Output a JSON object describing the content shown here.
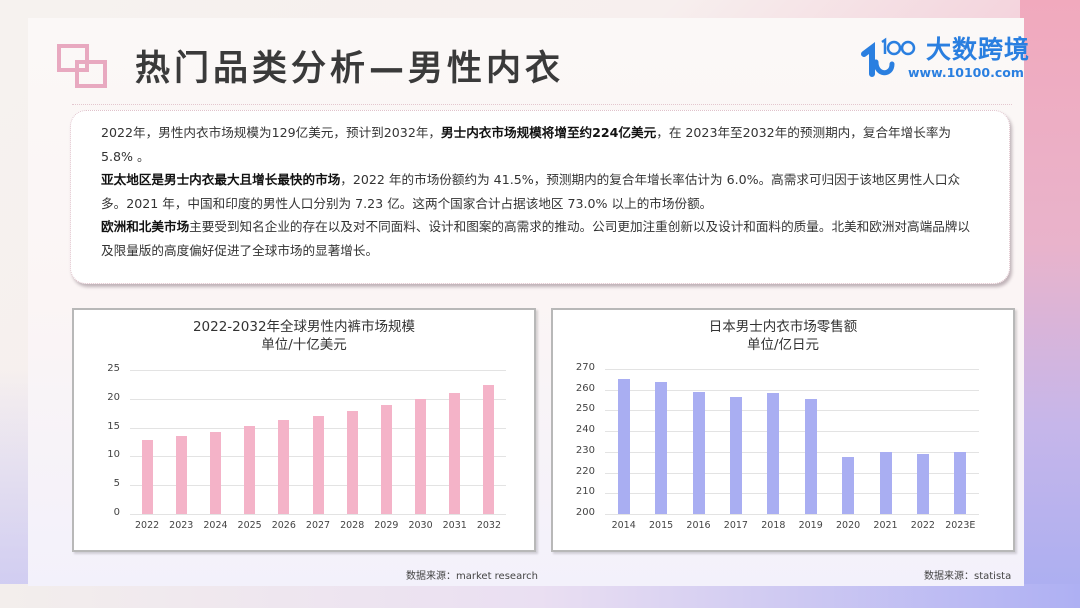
{
  "header": {
    "title": "热门品类分析—男性内衣",
    "brand_name": "大数跨境",
    "brand_url": "www.10100.com",
    "brand_mark": "1000"
  },
  "summary": {
    "paragraphs": [
      {
        "segments": [
          {
            "text": "2022年，男性内衣市场规模为129亿美元，预计到2032年，",
            "bold": false
          },
          {
            "text": "男士内衣市场规模将增至约224亿美元",
            "bold": true
          },
          {
            "text": "，在 2023年至2032年的预测期内，复合年增长率为 5.8% 。",
            "bold": false
          }
        ]
      },
      {
        "segments": [
          {
            "text": "亚太地区是男士内衣最大且增长最快的市场",
            "bold": true
          },
          {
            "text": "，2022 年的市场份额约为 41.5%，预测期内的复合年增长率估计为 6.0%。高需求可归因于该地区男性人口众多。2021 年，中国和印度的男性人口分别为 7.23 亿。这两个国家合计占据该地区 73.0% 以上的市场份额。",
            "bold": false
          }
        ]
      },
      {
        "segments": [
          {
            "text": "欧洲和北美市场",
            "bold": true
          },
          {
            "text": "主要受到知名企业的存在以及对不同面料、设计和图案的高需求的推动。公司更加注重创新以及设计和面料的质量。北美和欧洲对高端品牌以及限量版的高度偏好促进了全球市场的显著增长。",
            "bold": false
          }
        ]
      }
    ]
  },
  "colors": {
    "accent_pink": "#e8a9c0",
    "bar_pink": "#f4b3c8",
    "bar_blue": "#a9aef2",
    "brand_blue": "#2a7fe0"
  },
  "chart_data": [
    {
      "type": "bar",
      "title": "2022-2032年全球男性内裤市场规模",
      "subtitle": "单位/十亿美元",
      "xlabel": "",
      "ylabel": "",
      "categories": [
        "2022",
        "2023",
        "2024",
        "2025",
        "2026",
        "2027",
        "2028",
        "2029",
        "2030",
        "2031",
        "2032"
      ],
      "values": [
        12.9,
        13.6,
        14.3,
        15.3,
        16.4,
        17.1,
        17.8,
        18.9,
        19.9,
        21.0,
        22.4
      ],
      "ylim": [
        0,
        25
      ],
      "yticks": [
        0,
        5,
        10,
        15,
        20,
        25
      ],
      "grid": true,
      "legend": null,
      "color": "#f4b3c8",
      "source": "数据来源：market research"
    },
    {
      "type": "bar",
      "title": "日本男士内衣市场零售额",
      "subtitle": "单位/亿日元",
      "xlabel": "",
      "ylabel": "",
      "categories": [
        "2014",
        "2015",
        "2016",
        "2017",
        "2018",
        "2019",
        "2020",
        "2021",
        "2022",
        "2023E"
      ],
      "values": [
        265,
        263.5,
        259,
        256.5,
        258.5,
        255.5,
        227.5,
        230,
        229,
        230
      ],
      "ylim": [
        200,
        270
      ],
      "yticks": [
        200,
        210,
        220,
        230,
        240,
        250,
        260,
        270
      ],
      "grid": true,
      "legend": null,
      "color": "#a9aef2",
      "source": "数据来源：statista"
    }
  ]
}
